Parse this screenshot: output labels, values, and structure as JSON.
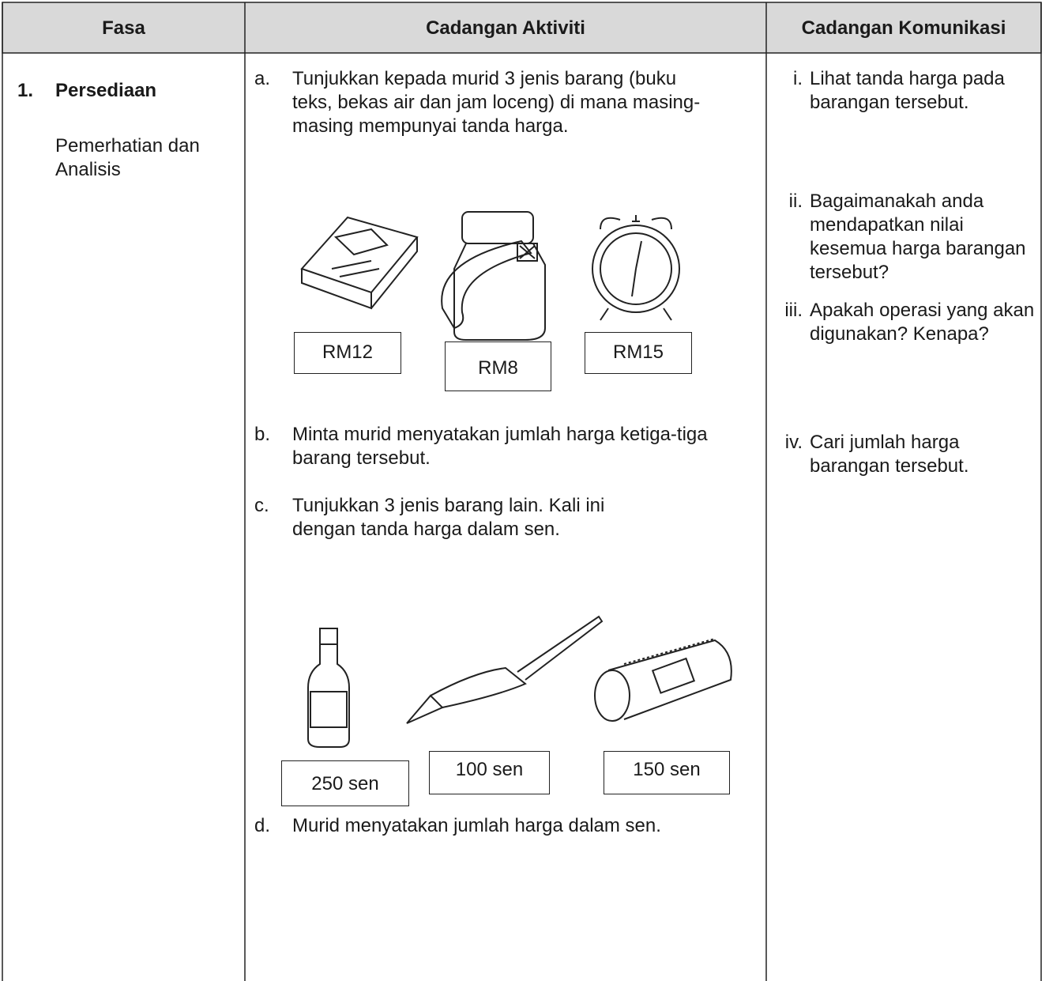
{
  "table": {
    "headers": [
      "Fasa",
      "Cadangan Aktiviti",
      "Cadangan Komunikasi"
    ],
    "phase": {
      "number": "1.",
      "title": "Persediaan",
      "subtitle": "Pemerhatian dan Analisis"
    },
    "activities": [
      {
        "marker": "a.",
        "text": "Tunjukkan kepada murid 3 jenis barang (buku teks, bekas air dan jam loceng) di mana masing-masing mempunyai tanda harga."
      },
      {
        "marker": "b.",
        "text": "Minta murid menyatakan jumlah harga ketiga-tiga barang tersebut."
      },
      {
        "marker": "c.",
        "text": "Tunjukkan 3 jenis barang lain. Kali ini dengan tanda harga dalam sen."
      },
      {
        "marker": "d.",
        "text": "Murid menyatakan jumlah harga dalam sen."
      }
    ],
    "price_tags_1": [
      "RM12",
      "RM8",
      "RM15"
    ],
    "price_tags_2": [
      "250 sen",
      "100 sen",
      "150 sen"
    ],
    "communication": [
      {
        "marker": "i.",
        "text": "Lihat tanda harga pada barangan tersebut."
      },
      {
        "marker": "ii.",
        "text": "Bagaimanakah anda mendapatkan nilai kesemua harga barangan tersebut?"
      },
      {
        "marker": "iii.",
        "text": "Apakah operasi yang akan digunakan? Kenapa?"
      },
      {
        "marker": "iv.",
        "text": "Cari jumlah harga barangan tersebut."
      }
    ]
  }
}
